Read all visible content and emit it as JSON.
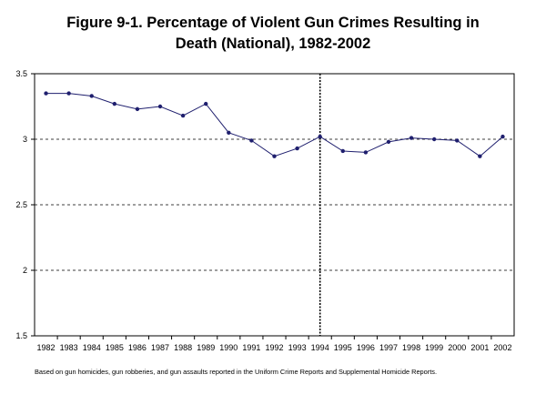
{
  "title_line1": "Figure 9-1. Percentage of Violent Gun Crimes Resulting in",
  "title_line2": "Death (National), 1982-2002",
  "footnote": "Based on gun homicides, gun robberies, and gun assaults reported in the Uniform Crime Reports and Supplemental Homicide Reports.",
  "chart_data": {
    "type": "line",
    "title": "Figure 9-1. Percentage of Violent Gun Crimes Resulting in Death (National), 1982-2002",
    "xlabel": "",
    "ylabel": "",
    "categories": [
      "1982",
      "1983",
      "1984",
      "1985",
      "1986",
      "1987",
      "1988",
      "1989",
      "1990",
      "1991",
      "1992",
      "1993",
      "1994",
      "1995",
      "1996",
      "1997",
      "1998",
      "1999",
      "2000",
      "2001",
      "2002"
    ],
    "series": [
      {
        "values": [
          3.35,
          3.35,
          3.33,
          3.27,
          3.23,
          3.25,
          3.18,
          3.27,
          3.05,
          2.99,
          2.87,
          2.93,
          3.02,
          2.91,
          2.9,
          2.98,
          3.01,
          3.0,
          2.99,
          2.87,
          3.02
        ]
      }
    ],
    "ylim": [
      1.5,
      3.5
    ],
    "yticks": [
      "1.5",
      "2",
      "2.5",
      "3",
      "3.5"
    ],
    "grid": "horizontal dashed",
    "vertical_marker": "1994",
    "line_color": "#1f1f6e",
    "marker_color": "#1f1f6e"
  }
}
